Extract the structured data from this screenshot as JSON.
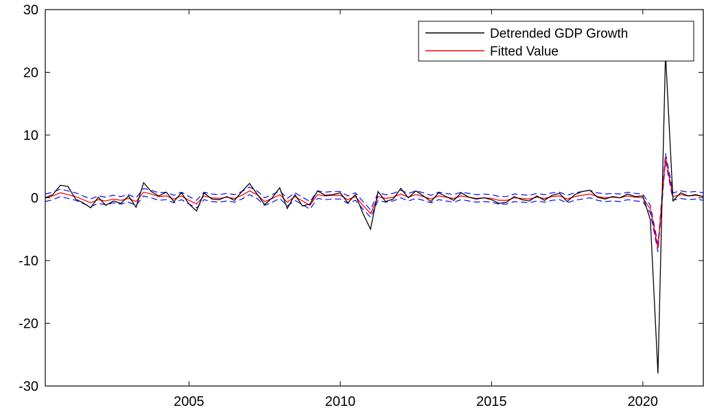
{
  "chart_data": {
    "type": "line",
    "title": "",
    "xlabel": "",
    "ylabel": "",
    "xlim": [
      2000.25,
      2022.0
    ],
    "ylim": [
      -30,
      30
    ],
    "yticks": [
      -30,
      -20,
      -10,
      0,
      10,
      20,
      30
    ],
    "xticks": [
      2005,
      2010,
      2015,
      2020
    ],
    "legend_position": "top-right",
    "grid": false,
    "series": [
      {
        "name": "Detrended GDP Growth",
        "color": "#000000",
        "style": "solid",
        "x": [
          2000.25,
          2000.5,
          2000.75,
          2001.0,
          2001.25,
          2001.5,
          2001.75,
          2002.0,
          2002.25,
          2002.5,
          2002.75,
          2003.0,
          2003.25,
          2003.5,
          2003.75,
          2004.0,
          2004.25,
          2004.5,
          2004.75,
          2005.0,
          2005.25,
          2005.5,
          2005.75,
          2006.0,
          2006.25,
          2006.5,
          2006.75,
          2007.0,
          2007.25,
          2007.5,
          2007.75,
          2008.0,
          2008.25,
          2008.5,
          2008.75,
          2009.0,
          2009.25,
          2009.5,
          2009.75,
          2010.0,
          2010.25,
          2010.5,
          2010.75,
          2011.0,
          2011.25,
          2011.5,
          2011.75,
          2012.0,
          2012.25,
          2012.5,
          2012.75,
          2013.0,
          2013.25,
          2013.5,
          2013.75,
          2014.0,
          2014.25,
          2014.5,
          2014.75,
          2015.0,
          2015.25,
          2015.5,
          2015.75,
          2016.0,
          2016.25,
          2016.5,
          2016.75,
          2017.0,
          2017.25,
          2017.5,
          2017.75,
          2018.0,
          2018.25,
          2018.5,
          2018.75,
          2019.0,
          2019.25,
          2019.5,
          2019.75,
          2020.0,
          2020.25,
          2020.5,
          2020.75,
          2021.0,
          2021.25,
          2021.5,
          2021.75,
          2022.0
        ],
        "y": [
          0.0,
          0.5,
          2.0,
          1.8,
          -0.2,
          -0.8,
          -1.6,
          0.1,
          -1.2,
          -0.5,
          -0.9,
          0.3,
          -1.5,
          2.4,
          1.0,
          0.3,
          0.9,
          -0.6,
          0.8,
          -1.0,
          -2.1,
          0.8,
          -0.2,
          -0.3,
          0.2,
          -0.4,
          1.0,
          2.3,
          0.6,
          -1.1,
          0.0,
          1.6,
          -1.7,
          0.5,
          -1.3,
          -1.0,
          1.1,
          0.4,
          0.5,
          0.8,
          -0.8,
          0.5,
          -2.5,
          -5.0,
          1.0,
          -0.6,
          -0.2,
          1.5,
          0.0,
          1.1,
          0.3,
          -0.6,
          0.8,
          0.2,
          -0.4,
          0.8,
          0.1,
          -0.2,
          0.0,
          -0.3,
          -0.9,
          -0.7,
          0.2,
          -0.3,
          -0.5,
          0.3,
          -0.4,
          0.4,
          0.7,
          -0.6,
          0.5,
          1.0,
          1.2,
          0.1,
          -0.2,
          0.2,
          0.0,
          0.6,
          0.2,
          0.3,
          -3.5,
          -28.0,
          23.0,
          -0.5,
          0.8,
          0.3,
          0.5,
          0.2
        ]
      },
      {
        "name": "Fitted Value",
        "color": "#ff0000",
        "style": "solid",
        "x": [
          2000.25,
          2000.5,
          2000.75,
          2001.0,
          2001.25,
          2001.5,
          2001.75,
          2002.0,
          2002.25,
          2002.5,
          2002.75,
          2003.0,
          2003.25,
          2003.5,
          2003.75,
          2004.0,
          2004.25,
          2004.5,
          2004.75,
          2005.0,
          2005.25,
          2005.5,
          2005.75,
          2006.0,
          2006.25,
          2006.5,
          2006.75,
          2007.0,
          2007.25,
          2007.5,
          2007.75,
          2008.0,
          2008.25,
          2008.5,
          2008.75,
          2009.0,
          2009.25,
          2009.5,
          2009.75,
          2010.0,
          2010.25,
          2010.5,
          2010.75,
          2011.0,
          2011.25,
          2011.5,
          2011.75,
          2012.0,
          2012.25,
          2012.5,
          2012.75,
          2013.0,
          2013.25,
          2013.5,
          2013.75,
          2014.0,
          2014.25,
          2014.5,
          2014.75,
          2015.0,
          2015.25,
          2015.5,
          2015.75,
          2016.0,
          2016.25,
          2016.5,
          2016.75,
          2017.0,
          2017.25,
          2017.5,
          2017.75,
          2018.0,
          2018.25,
          2018.5,
          2018.75,
          2019.0,
          2019.25,
          2019.5,
          2019.75,
          2020.0,
          2020.25,
          2020.5,
          2020.75,
          2021.0,
          2021.25,
          2021.5,
          2021.75,
          2022.0
        ],
        "y": [
          0.0,
          0.3,
          0.8,
          0.5,
          0.2,
          -0.3,
          -0.8,
          -0.3,
          -0.5,
          -0.2,
          -0.4,
          -0.1,
          -0.6,
          0.9,
          0.6,
          0.2,
          0.3,
          -0.2,
          0.3,
          -0.4,
          -1.0,
          0.3,
          0.0,
          -0.1,
          0.1,
          -0.1,
          0.4,
          1.1,
          0.5,
          -0.6,
          -0.1,
          0.5,
          -0.7,
          0.2,
          -0.5,
          -1.2,
          0.5,
          0.3,
          0.4,
          0.4,
          -0.3,
          0.2,
          -1.2,
          -2.5,
          0.2,
          -0.1,
          0.1,
          0.6,
          0.1,
          0.5,
          0.2,
          -0.2,
          0.3,
          0.1,
          -0.1,
          0.3,
          0.1,
          -0.1,
          0.0,
          -0.1,
          -0.4,
          -0.4,
          0.0,
          -0.1,
          -0.2,
          0.1,
          -0.1,
          0.2,
          0.3,
          -0.2,
          0.2,
          0.4,
          0.6,
          0.2,
          0.0,
          0.1,
          0.0,
          0.3,
          0.1,
          0.0,
          -1.8,
          -8.0,
          6.5,
          0.2,
          0.5,
          0.3,
          0.4,
          0.2
        ]
      },
      {
        "color": "#0000ff",
        "style": "dashed",
        "x": [
          2000.25,
          2000.5,
          2000.75,
          2001.0,
          2001.25,
          2001.5,
          2001.75,
          2002.0,
          2002.25,
          2002.5,
          2002.75,
          2003.0,
          2003.25,
          2003.5,
          2003.75,
          2004.0,
          2004.25,
          2004.5,
          2004.75,
          2005.0,
          2005.25,
          2005.5,
          2005.75,
          2006.0,
          2006.25,
          2006.5,
          2006.75,
          2007.0,
          2007.25,
          2007.5,
          2007.75,
          2008.0,
          2008.25,
          2008.5,
          2008.75,
          2009.0,
          2009.25,
          2009.5,
          2009.75,
          2010.0,
          2010.25,
          2010.5,
          2010.75,
          2011.0,
          2011.25,
          2011.5,
          2011.75,
          2012.0,
          2012.25,
          2012.5,
          2012.75,
          2013.0,
          2013.25,
          2013.5,
          2013.75,
          2014.0,
          2014.25,
          2014.5,
          2014.75,
          2015.0,
          2015.25,
          2015.5,
          2015.75,
          2016.0,
          2016.25,
          2016.5,
          2016.75,
          2017.0,
          2017.25,
          2017.5,
          2017.75,
          2018.0,
          2018.25,
          2018.5,
          2018.75,
          2019.0,
          2019.25,
          2019.5,
          2019.75,
          2020.0,
          2020.25,
          2020.5,
          2020.75,
          2021.0,
          2021.25,
          2021.5,
          2021.75,
          2022.0
        ],
        "y": [
          0.6,
          0.9,
          1.4,
          1.1,
          0.8,
          0.3,
          -0.2,
          0.3,
          0.1,
          0.4,
          0.2,
          0.5,
          0.0,
          1.5,
          1.2,
          0.8,
          0.9,
          0.4,
          0.9,
          0.2,
          -0.4,
          0.9,
          0.6,
          0.5,
          0.7,
          0.5,
          1.0,
          1.7,
          1.1,
          0.0,
          0.5,
          1.1,
          -0.1,
          0.8,
          0.1,
          -0.6,
          1.1,
          0.9,
          1.0,
          1.0,
          0.3,
          0.8,
          -0.6,
          -1.9,
          0.8,
          0.5,
          0.7,
          1.2,
          0.7,
          1.1,
          0.8,
          0.4,
          0.9,
          0.7,
          0.5,
          0.9,
          0.7,
          0.5,
          0.6,
          0.5,
          0.2,
          0.2,
          0.6,
          0.5,
          0.4,
          0.7,
          0.5,
          0.8,
          0.9,
          0.4,
          0.8,
          1.0,
          1.2,
          0.8,
          0.6,
          0.7,
          0.6,
          0.9,
          0.7,
          0.6,
          -1.2,
          -7.4,
          7.1,
          0.8,
          1.1,
          0.9,
          1.0,
          0.8
        ]
      },
      {
        "color": "#0000ff",
        "style": "dashed",
        "x": [
          2000.25,
          2000.5,
          2000.75,
          2001.0,
          2001.25,
          2001.5,
          2001.75,
          2002.0,
          2002.25,
          2002.5,
          2002.75,
          2003.0,
          2003.25,
          2003.5,
          2003.75,
          2004.0,
          2004.25,
          2004.5,
          2004.75,
          2005.0,
          2005.25,
          2005.5,
          2005.75,
          2006.0,
          2006.25,
          2006.5,
          2006.75,
          2007.0,
          2007.25,
          2007.5,
          2007.75,
          2008.0,
          2008.25,
          2008.5,
          2008.75,
          2009.0,
          2009.25,
          2009.5,
          2009.75,
          2010.0,
          2010.25,
          2010.5,
          2010.75,
          2011.0,
          2011.25,
          2011.5,
          2011.75,
          2012.0,
          2012.25,
          2012.5,
          2012.75,
          2013.0,
          2013.25,
          2013.5,
          2013.75,
          2014.0,
          2014.25,
          2014.5,
          2014.75,
          2015.0,
          2015.25,
          2015.5,
          2015.75,
          2016.0,
          2016.25,
          2016.5,
          2016.75,
          2017.0,
          2017.25,
          2017.5,
          2017.75,
          2018.0,
          2018.25,
          2018.5,
          2018.75,
          2019.0,
          2019.25,
          2019.5,
          2019.75,
          2020.0,
          2020.25,
          2020.5,
          2020.75,
          2021.0,
          2021.25,
          2021.5,
          2021.75,
          2022.0
        ],
        "y": [
          -0.6,
          -0.3,
          0.2,
          -0.1,
          -0.4,
          -0.9,
          -1.4,
          -0.9,
          -1.1,
          -0.8,
          -1.0,
          -0.7,
          -1.2,
          0.3,
          0.0,
          -0.4,
          -0.3,
          -0.8,
          -0.3,
          -1.0,
          -1.6,
          -0.3,
          -0.6,
          -0.7,
          -0.5,
          -0.7,
          -0.2,
          0.5,
          -0.1,
          -1.2,
          -0.7,
          -0.1,
          -1.3,
          -0.4,
          -1.1,
          -1.8,
          -0.1,
          -0.3,
          -0.2,
          -0.2,
          -0.9,
          -0.4,
          -1.8,
          -3.1,
          -0.4,
          -0.7,
          -0.5,
          0.0,
          -0.5,
          -0.1,
          -0.4,
          -0.8,
          -0.3,
          -0.5,
          -0.7,
          -0.3,
          -0.5,
          -0.7,
          -0.6,
          -0.7,
          -1.0,
          -1.0,
          -0.6,
          -0.7,
          -0.8,
          -0.5,
          -0.7,
          -0.4,
          -0.3,
          -0.8,
          -0.4,
          -0.2,
          0.0,
          -0.4,
          -0.6,
          -0.5,
          -0.6,
          -0.3,
          -0.5,
          -0.6,
          -2.4,
          -8.6,
          5.9,
          -0.4,
          -0.1,
          -0.3,
          -0.2,
          -0.4
        ]
      }
    ]
  }
}
